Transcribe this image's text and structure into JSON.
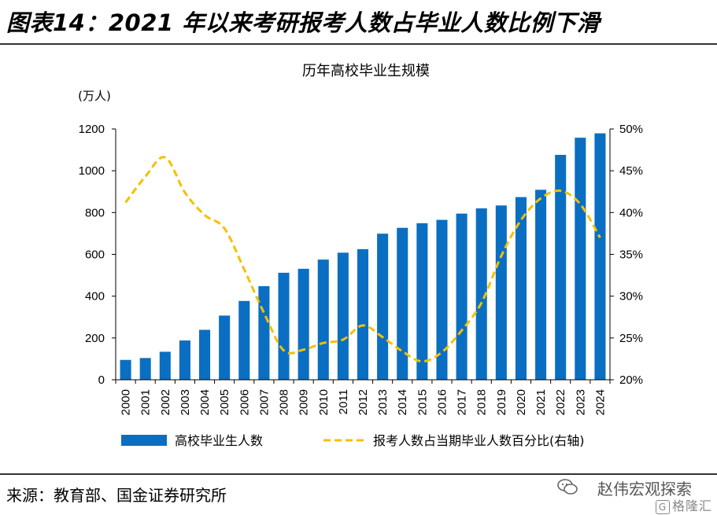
{
  "figure_title": "图表14：2021 年以来考研报考人数占毕业人数比例下滑",
  "source": "来源：教育部、国金证券研究所",
  "watermark": {
    "line1": "赵伟宏观探索",
    "line2": "格隆汇",
    "icon": "wechat-icon"
  },
  "colors": {
    "bar": "#0a6fc2",
    "line": "#f5c000",
    "axis": "#000000"
  },
  "chart_data": {
    "type": "bar",
    "title": "历年高校毕业生规模",
    "left_unit": "(万人)",
    "categories": [
      "2000",
      "2001",
      "2002",
      "2003",
      "2004",
      "2005",
      "2006",
      "2007",
      "2008",
      "2009",
      "2010",
      "2011",
      "2012",
      "2013",
      "2014",
      "2015",
      "2016",
      "2017",
      "2018",
      "2019",
      "2020",
      "2021",
      "2022",
      "2023",
      "2024"
    ],
    "series": [
      {
        "name": "高校毕业生人数",
        "type": "bar",
        "axis": "left",
        "values": [
          95,
          104,
          134,
          188,
          239,
          307,
          377,
          448,
          512,
          531,
          575,
          608,
          625,
          699,
          727,
          749,
          765,
          795,
          820,
          834,
          874,
          909,
          1076,
          1158,
          1179
        ]
      },
      {
        "name": "报考人数占当期毕业人数百分比(右轴)",
        "type": "line",
        "style": "dashed",
        "axis": "right",
        "values": [
          41.2,
          44.3,
          46.6,
          42.4,
          39.7,
          38.1,
          33.2,
          28.0,
          23.5,
          23.6,
          24.4,
          24.8,
          26.5,
          25.1,
          23.4,
          22.2,
          23.3,
          25.9,
          29.2,
          34.8,
          39.1,
          41.7,
          42.6,
          41.0,
          37.0
        ]
      }
    ],
    "ylim_left": [
      0,
      1200
    ],
    "yticks_left": [
      "0",
      "200",
      "400",
      "600",
      "800",
      "1000",
      "1200"
    ],
    "ylim_right": [
      20,
      50
    ],
    "yticks_right": [
      "20%",
      "25%",
      "30%",
      "35%",
      "40%",
      "45%",
      "50%"
    ],
    "legend_position": "bottom"
  }
}
